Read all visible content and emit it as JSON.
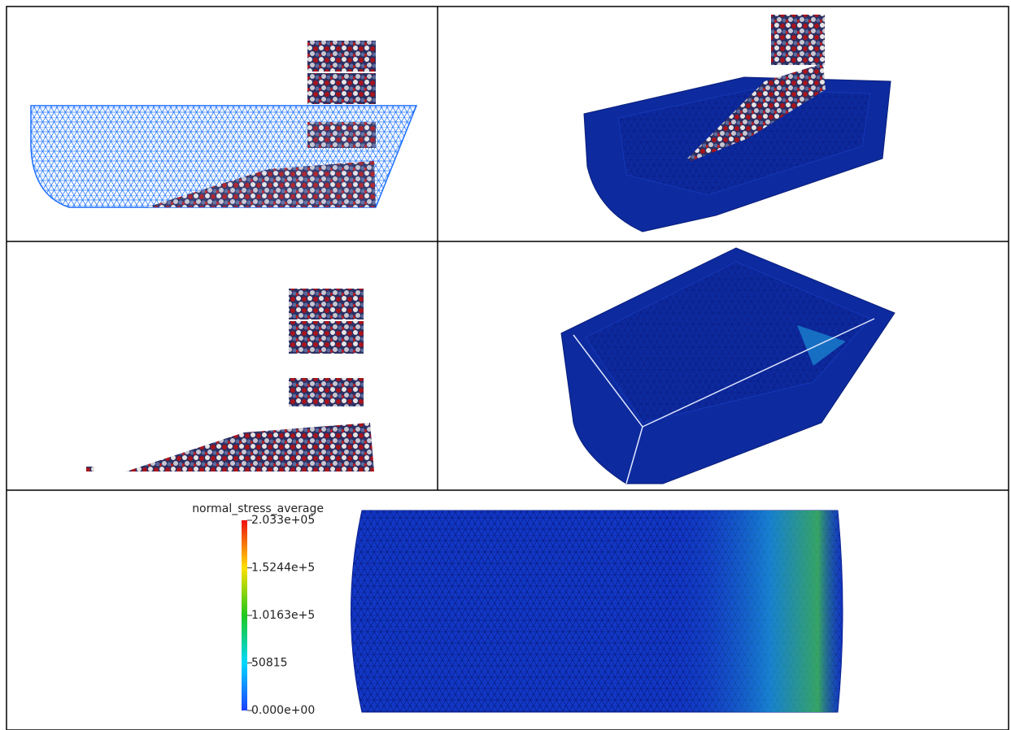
{
  "colorbar": {
    "title": "normal_stress_average",
    "ticks": [
      {
        "value": 203300,
        "label": "2.033e+05"
      },
      {
        "value": 152440,
        "label": "1.5244e+5"
      },
      {
        "value": 101630,
        "label": "1.0163e+5"
      },
      50815,
      {
        "value": 0,
        "label": "0.000e+00"
      }
    ]
  }
}
